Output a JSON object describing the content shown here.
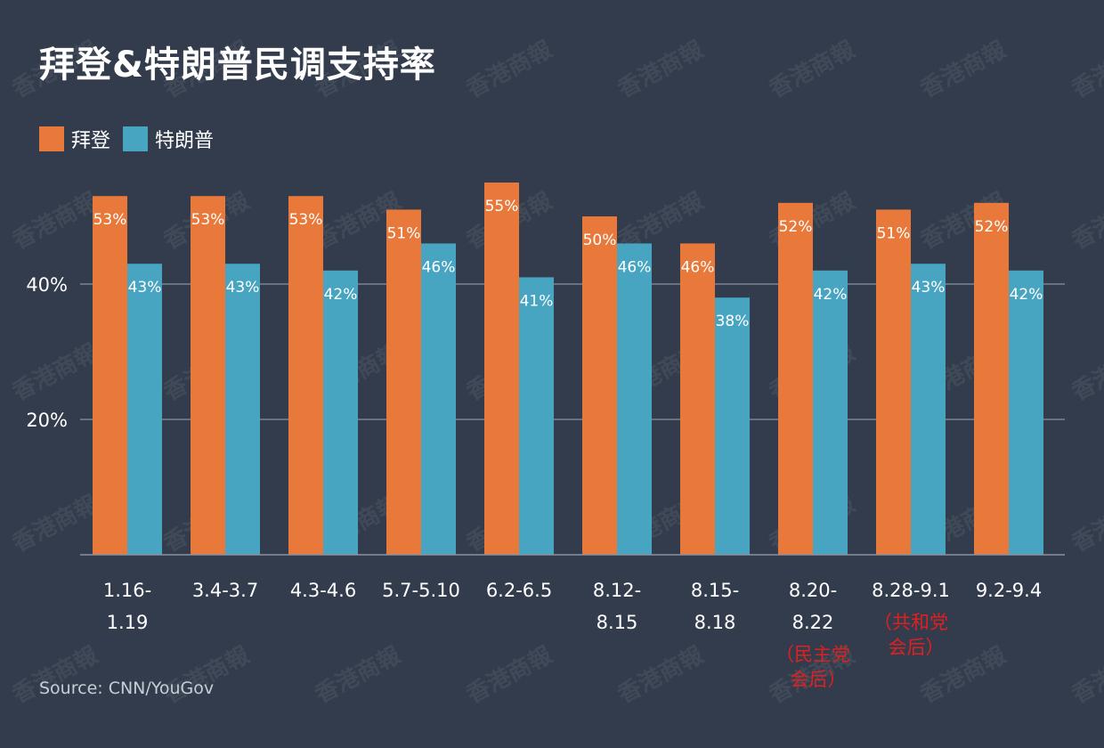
{
  "chart_data": {
    "type": "bar",
    "title": "拜登&特朗普民调支持率",
    "source": "Source: CNN/YouGov",
    "categories": [
      [
        "1.16-",
        "1.19"
      ],
      [
        "3.4-3.7"
      ],
      [
        "4.3-4.6"
      ],
      [
        "5.7-5.10"
      ],
      [
        "6.2-6.5"
      ],
      [
        "8.12-",
        "8.15"
      ],
      [
        "8.15-",
        "8.18"
      ],
      [
        "8.20-",
        "8.22"
      ],
      [
        "8.28-9.1"
      ],
      [
        "9.2-9.4"
      ]
    ],
    "category_notes": [
      "",
      "",
      "",
      "",
      "",
      "",
      "",
      "（民主党会后）",
      "（共和党会后）",
      ""
    ],
    "series": [
      {
        "name": "拜登",
        "color": "#e8793a",
        "values": [
          53,
          53,
          53,
          51,
          55,
          50,
          46,
          52,
          51,
          52
        ]
      },
      {
        "name": "特朗普",
        "color": "#48a5c2",
        "values": [
          43,
          43,
          42,
          46,
          41,
          46,
          38,
          42,
          43,
          42
        ]
      }
    ],
    "yticks": [
      20,
      40
    ],
    "ytick_format": "%",
    "ylim": [
      0,
      55
    ],
    "grid": true,
    "legend_position": "top-left",
    "note_color": "#e02020",
    "watermark": "香港商報"
  }
}
